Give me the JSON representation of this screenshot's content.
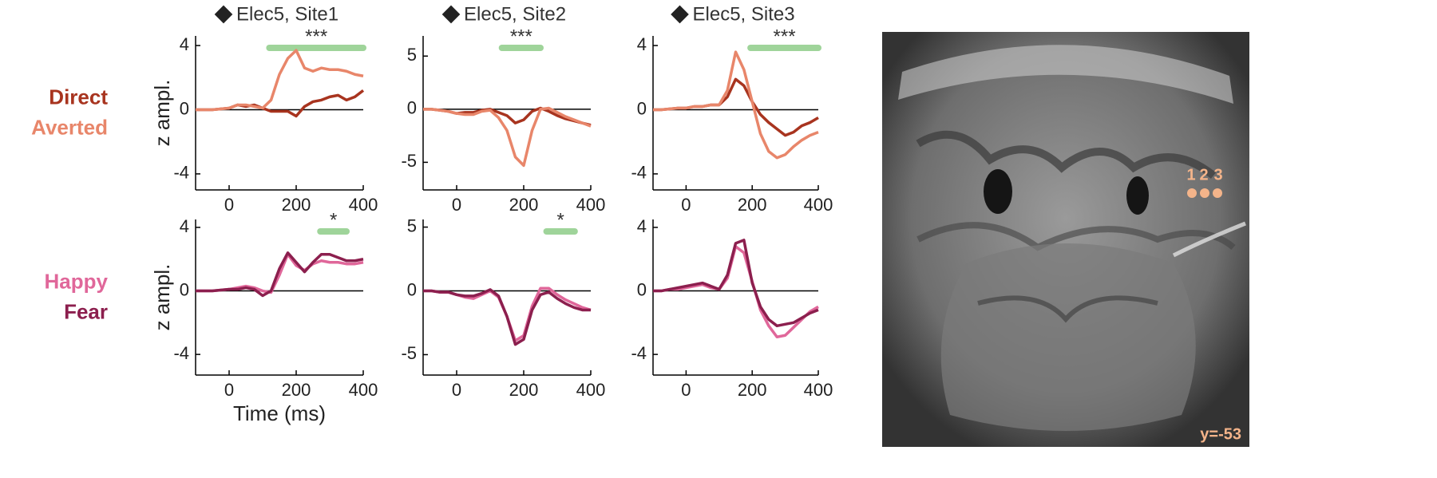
{
  "chart_data": [
    {
      "type": "line",
      "title": "Elec5, Site1",
      "ylabel": "z ampl.",
      "x": [
        -100,
        -75,
        -50,
        -25,
        0,
        25,
        50,
        75,
        100,
        125,
        150,
        175,
        200,
        225,
        250,
        275,
        300,
        325,
        350,
        375,
        400
      ],
      "xlim": [
        -100,
        400
      ],
      "xticks": [
        0,
        200,
        400
      ],
      "ylim": [
        -5,
        4.6
      ],
      "yticks": [
        4,
        0,
        -4
      ],
      "significance": {
        "label": "***",
        "range": [
          120,
          400
        ]
      },
      "series": [
        {
          "name": "Direct",
          "color": "#a8341f",
          "values": [
            0,
            0,
            0,
            0.05,
            0.1,
            0.3,
            0.2,
            0.3,
            0.1,
            -0.1,
            -0.1,
            -0.1,
            -0.4,
            0.2,
            0.5,
            0.6,
            0.8,
            0.9,
            0.6,
            0.8,
            1.2
          ]
        },
        {
          "name": "Averted",
          "color": "#e8866a",
          "values": [
            0,
            0,
            0,
            0.05,
            0.1,
            0.3,
            0.3,
            0.2,
            0.1,
            0.6,
            2.2,
            3.2,
            3.7,
            2.6,
            2.4,
            2.6,
            2.5,
            2.5,
            2.4,
            2.2,
            2.1
          ]
        }
      ]
    },
    {
      "type": "line",
      "title": "Elec5, Site2",
      "x": [
        -100,
        -75,
        -50,
        -25,
        0,
        25,
        50,
        75,
        100,
        125,
        150,
        175,
        200,
        225,
        250,
        275,
        300,
        325,
        350,
        375,
        400
      ],
      "xlim": [
        -100,
        400
      ],
      "xticks": [
        0,
        200,
        400
      ],
      "ylim": [
        -7.6,
        6.9
      ],
      "yticks": [
        5,
        0,
        -5
      ],
      "significance": {
        "label": "***",
        "range": [
          135,
          250
        ]
      },
      "series": [
        {
          "color": "#a8341f",
          "values": [
            0,
            0,
            -0.1,
            -0.2,
            -0.4,
            -0.3,
            -0.3,
            -0.1,
            0,
            -0.3,
            -0.6,
            -1.3,
            -1.0,
            -0.2,
            0.1,
            -0.2,
            -0.6,
            -0.9,
            -1.1,
            -1.3,
            -1.5
          ]
        },
        {
          "color": "#e8866a",
          "values": [
            0,
            0,
            -0.1,
            -0.2,
            -0.4,
            -0.5,
            -0.5,
            -0.2,
            -0.1,
            -0.8,
            -2.0,
            -4.5,
            -5.3,
            -2.0,
            0,
            0.1,
            -0.3,
            -0.7,
            -1.0,
            -1.3,
            -1.6
          ]
        }
      ]
    },
    {
      "type": "line",
      "title": "Elec5, Site3",
      "x": [
        -100,
        -75,
        -50,
        -25,
        0,
        25,
        50,
        75,
        100,
        125,
        150,
        175,
        200,
        225,
        250,
        275,
        300,
        325,
        350,
        375,
        400
      ],
      "xlim": [
        -100,
        400
      ],
      "xticks": [
        0,
        200,
        400
      ],
      "ylim": [
        -5,
        4.6
      ],
      "yticks": [
        4,
        0,
        -4
      ],
      "significance": {
        "label": "***",
        "range": [
          195,
          400
        ]
      },
      "series": [
        {
          "color": "#a8341f",
          "values": [
            0,
            0,
            0.05,
            0.1,
            0.1,
            0.2,
            0.2,
            0.3,
            0.3,
            0.8,
            1.9,
            1.5,
            0.5,
            -0.3,
            -0.8,
            -1.2,
            -1.6,
            -1.4,
            -1.0,
            -0.8,
            -0.5
          ]
        },
        {
          "color": "#e8866a",
          "values": [
            0,
            0,
            0.05,
            0.1,
            0.1,
            0.2,
            0.2,
            0.3,
            0.3,
            1.2,
            3.6,
            2.5,
            0.5,
            -1.5,
            -2.6,
            -3.0,
            -2.8,
            -2.3,
            -1.9,
            -1.6,
            -1.4
          ]
        }
      ]
    },
    {
      "type": "line",
      "ylabel": "z ampl.",
      "xlabel": "Time (ms)",
      "x": [
        -100,
        -75,
        -50,
        -25,
        0,
        25,
        50,
        75,
        100,
        125,
        150,
        175,
        200,
        225,
        250,
        275,
        300,
        325,
        350,
        375,
        400
      ],
      "xlim": [
        -100,
        400
      ],
      "xticks": [
        0,
        200,
        400
      ],
      "ylim": [
        -5.3,
        4.5
      ],
      "yticks": [
        4,
        0,
        -4
      ],
      "significance": {
        "label": "*",
        "range": [
          272,
          350
        ]
      },
      "series": [
        {
          "name": "Happy",
          "color": "#e0679a",
          "values": [
            0,
            0,
            0,
            0.05,
            0.1,
            0.2,
            0.3,
            0.2,
            0,
            -0.1,
            1.0,
            2.3,
            1.6,
            1.3,
            1.7,
            1.9,
            1.8,
            1.8,
            1.7,
            1.7,
            1.8
          ]
        },
        {
          "name": "Fear",
          "color": "#8c1f4e",
          "values": [
            0,
            0,
            0,
            0.05,
            0.1,
            0.1,
            0.2,
            0.1,
            -0.3,
            0,
            1.4,
            2.4,
            1.8,
            1.2,
            1.8,
            2.3,
            2.3,
            2.1,
            1.9,
            1.9,
            2.0
          ]
        }
      ]
    },
    {
      "type": "line",
      "x": [
        -100,
        -75,
        -50,
        -25,
        0,
        25,
        50,
        75,
        100,
        125,
        150,
        175,
        200,
        225,
        250,
        275,
        300,
        325,
        350,
        375,
        400
      ],
      "xlim": [
        -100,
        400
      ],
      "xticks": [
        0,
        200,
        400
      ],
      "ylim": [
        -6.6,
        5.6
      ],
      "yticks": [
        5,
        0,
        -5
      ],
      "significance": {
        "label": "*",
        "range": [
          268,
          352
        ]
      },
      "series": [
        {
          "color": "#e0679a",
          "values": [
            0,
            0,
            -0.1,
            -0.1,
            -0.3,
            -0.5,
            -0.6,
            -0.3,
            0,
            -0.5,
            -2.0,
            -3.9,
            -3.5,
            -1.2,
            0.2,
            0.2,
            -0.3,
            -0.7,
            -1.0,
            -1.3,
            -1.5
          ]
        },
        {
          "color": "#8c1f4e",
          "values": [
            0,
            0,
            -0.1,
            -0.1,
            -0.3,
            -0.4,
            -0.4,
            -0.2,
            0.1,
            -0.4,
            -2.0,
            -4.2,
            -3.8,
            -1.5,
            -0.3,
            -0.1,
            -0.6,
            -1.0,
            -1.3,
            -1.5,
            -1.5
          ]
        }
      ]
    },
    {
      "type": "line",
      "x": [
        -100,
        -75,
        -50,
        -25,
        0,
        25,
        50,
        75,
        100,
        125,
        150,
        175,
        200,
        225,
        250,
        275,
        300,
        325,
        350,
        375,
        400
      ],
      "xlim": [
        -100,
        400
      ],
      "xticks": [
        0,
        200,
        400
      ],
      "ylim": [
        -5.3,
        4.5
      ],
      "yticks": [
        4,
        0,
        -4
      ],
      "series": [
        {
          "color": "#e0679a",
          "values": [
            0,
            0,
            0.1,
            0.1,
            0.2,
            0.3,
            0.4,
            0.2,
            0.1,
            0.8,
            2.8,
            2.4,
            0.6,
            -1.2,
            -2.2,
            -2.9,
            -2.8,
            -2.3,
            -1.8,
            -1.3,
            -1.0
          ]
        },
        {
          "color": "#8c1f4e",
          "values": [
            0,
            0,
            0.1,
            0.2,
            0.3,
            0.4,
            0.5,
            0.3,
            0.1,
            1.0,
            3.0,
            3.2,
            0.5,
            -1.0,
            -1.8,
            -2.2,
            -2.1,
            -2.0,
            -1.7,
            -1.4,
            -1.2
          ]
        }
      ]
    }
  ],
  "brain": {
    "electrode_labels": [
      "1",
      "2",
      "3"
    ],
    "slice_label": "y=-53"
  }
}
